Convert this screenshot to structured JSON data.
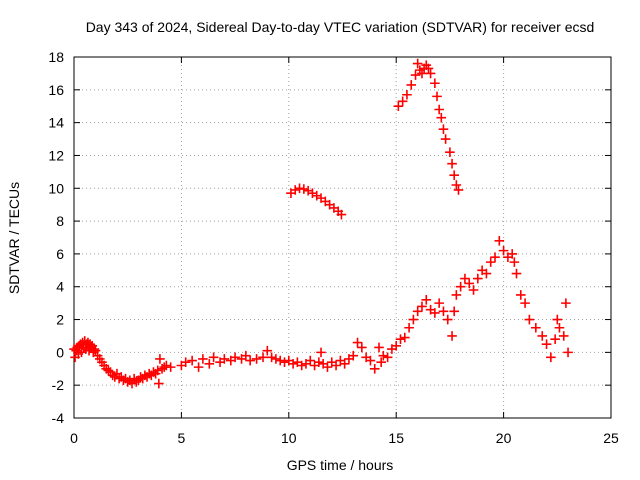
{
  "chart_data": {
    "type": "scatter",
    "title": "Day 343 of 2024, Sidereal Day-to-day VTEC variation (SDTVAR) for receiver ecsd",
    "xlabel": "GPS time / hours",
    "ylabel": "SDTVAR / TECUs",
    "xlim": [
      0,
      25
    ],
    "ylim": [
      -4,
      18
    ],
    "xticks": [
      "0",
      "5",
      "10",
      "15",
      "20",
      "25"
    ],
    "yticks": [
      "-4",
      "-2",
      "0",
      "2",
      "4",
      "6",
      "8",
      "10",
      "12",
      "14",
      "16",
      "18"
    ],
    "grid": true,
    "marker": "plus",
    "color": "#ff0000",
    "series": [
      {
        "name": "SDTVAR",
        "points": [
          [
            0.0,
            0.2
          ],
          [
            0.05,
            -0.3
          ],
          [
            0.1,
            0.1
          ],
          [
            0.15,
            0.3
          ],
          [
            0.2,
            -0.1
          ],
          [
            0.25,
            0.4
          ],
          [
            0.3,
            0.5
          ],
          [
            0.35,
            0.0
          ],
          [
            0.4,
            0.6
          ],
          [
            0.45,
            0.3
          ],
          [
            0.5,
            0.7
          ],
          [
            0.55,
            0.2
          ],
          [
            0.6,
            0.5
          ],
          [
            0.65,
            0.6
          ],
          [
            0.7,
            0.1
          ],
          [
            0.75,
            0.5
          ],
          [
            0.8,
            0.3
          ],
          [
            0.85,
            0.4
          ],
          [
            0.9,
            0.0
          ],
          [
            0.95,
            0.2
          ],
          [
            1.0,
            0.1
          ],
          [
            1.1,
            -0.2
          ],
          [
            1.2,
            -0.4
          ],
          [
            1.3,
            -0.6
          ],
          [
            1.4,
            -0.8
          ],
          [
            1.5,
            -1.0
          ],
          [
            1.6,
            -1.1
          ],
          [
            1.7,
            -1.2
          ],
          [
            1.8,
            -1.4
          ],
          [
            1.9,
            -1.5
          ],
          [
            2.0,
            -1.3
          ],
          [
            2.1,
            -1.6
          ],
          [
            2.2,
            -1.5
          ],
          [
            2.3,
            -1.7
          ],
          [
            2.4,
            -1.6
          ],
          [
            2.5,
            -1.8
          ],
          [
            2.6,
            -1.7
          ],
          [
            2.7,
            -1.9
          ],
          [
            2.8,
            -1.6
          ],
          [
            2.9,
            -1.8
          ],
          [
            3.0,
            -1.7
          ],
          [
            3.1,
            -1.5
          ],
          [
            3.2,
            -1.6
          ],
          [
            3.3,
            -1.4
          ],
          [
            3.4,
            -1.5
          ],
          [
            3.5,
            -1.3
          ],
          [
            3.6,
            -1.4
          ],
          [
            3.7,
            -1.2
          ],
          [
            3.8,
            -1.3
          ],
          [
            3.9,
            -1.1
          ],
          [
            3.95,
            -1.9
          ],
          [
            4.0,
            -0.4
          ],
          [
            4.1,
            -1.0
          ],
          [
            4.2,
            -0.9
          ],
          [
            4.3,
            -0.8
          ],
          [
            4.5,
            -0.9
          ],
          [
            5.0,
            -0.8
          ],
          [
            5.2,
            -0.6
          ],
          [
            5.5,
            -0.5
          ],
          [
            5.8,
            -0.9
          ],
          [
            6.0,
            -0.4
          ],
          [
            6.3,
            -0.7
          ],
          [
            6.5,
            -0.3
          ],
          [
            6.8,
            -0.6
          ],
          [
            7.0,
            -0.4
          ],
          [
            7.3,
            -0.5
          ],
          [
            7.5,
            -0.3
          ],
          [
            7.8,
            -0.4
          ],
          [
            8.0,
            -0.2
          ],
          [
            8.2,
            -0.5
          ],
          [
            8.5,
            -0.4
          ],
          [
            8.8,
            -0.3
          ],
          [
            9.0,
            0.1
          ],
          [
            9.2,
            -0.3
          ],
          [
            9.4,
            -0.4
          ],
          [
            9.6,
            -0.5
          ],
          [
            9.8,
            -0.6
          ],
          [
            10.0,
            -0.5
          ],
          [
            10.2,
            -0.7
          ],
          [
            10.4,
            -0.6
          ],
          [
            10.6,
            -0.8
          ],
          [
            10.8,
            -0.7
          ],
          [
            11.0,
            -0.5
          ],
          [
            11.2,
            -0.8
          ],
          [
            11.4,
            -0.6
          ],
          [
            11.5,
            0.0
          ],
          [
            11.6,
            -0.7
          ],
          [
            11.8,
            -0.9
          ],
          [
            12.0,
            -0.6
          ],
          [
            12.2,
            -0.8
          ],
          [
            12.4,
            -0.5
          ],
          [
            12.6,
            -0.7
          ],
          [
            12.8,
            -0.4
          ],
          [
            13.0,
            -0.2
          ],
          [
            13.2,
            0.6
          ],
          [
            13.4,
            0.3
          ],
          [
            13.6,
            -0.3
          ],
          [
            13.8,
            -0.5
          ],
          [
            14.0,
            -1.0
          ],
          [
            14.2,
            0.3
          ],
          [
            14.3,
            -0.6
          ],
          [
            14.4,
            -0.2
          ],
          [
            14.6,
            -0.3
          ],
          [
            14.8,
            0.2
          ],
          [
            15.0,
            0.4
          ],
          [
            15.2,
            0.8
          ],
          [
            15.4,
            0.9
          ],
          [
            15.6,
            1.5
          ],
          [
            15.8,
            2.0
          ],
          [
            16.0,
            2.5
          ],
          [
            16.2,
            2.8
          ],
          [
            16.4,
            3.2
          ],
          [
            16.6,
            2.6
          ],
          [
            16.8,
            2.4
          ],
          [
            17.0,
            3.0
          ],
          [
            17.2,
            2.5
          ],
          [
            17.4,
            2.0
          ],
          [
            17.6,
            1.0
          ],
          [
            17.7,
            2.5
          ],
          [
            17.8,
            3.5
          ],
          [
            18.0,
            4.0
          ],
          [
            18.2,
            4.5
          ],
          [
            18.4,
            4.2
          ],
          [
            18.6,
            3.8
          ],
          [
            18.8,
            4.5
          ],
          [
            19.0,
            5.0
          ],
          [
            19.2,
            4.8
          ],
          [
            19.4,
            5.5
          ],
          [
            19.6,
            5.8
          ],
          [
            19.8,
            6.8
          ],
          [
            20.0,
            6.2
          ],
          [
            20.2,
            5.8
          ],
          [
            20.4,
            6.0
          ],
          [
            20.5,
            5.5
          ],
          [
            20.6,
            4.8
          ],
          [
            20.8,
            3.5
          ],
          [
            21.0,
            3.0
          ],
          [
            21.2,
            2.0
          ],
          [
            21.5,
            1.5
          ],
          [
            21.8,
            1.0
          ],
          [
            22.0,
            0.5
          ],
          [
            22.2,
            -0.3
          ],
          [
            22.4,
            0.8
          ],
          [
            22.5,
            2.0
          ],
          [
            22.6,
            1.5
          ],
          [
            22.8,
            1.0
          ],
          [
            22.9,
            3.0
          ],
          [
            23.0,
            0.0
          ],
          [
            10.1,
            9.7
          ],
          [
            10.3,
            9.9
          ],
          [
            10.5,
            10.0
          ],
          [
            10.7,
            9.95
          ],
          [
            10.9,
            9.85
          ],
          [
            11.1,
            9.7
          ],
          [
            11.3,
            9.55
          ],
          [
            11.5,
            9.4
          ],
          [
            11.7,
            9.2
          ],
          [
            11.9,
            9.0
          ],
          [
            12.1,
            8.8
          ],
          [
            12.3,
            8.6
          ],
          [
            12.45,
            8.4
          ],
          [
            15.1,
            15.0
          ],
          [
            15.3,
            15.3
          ],
          [
            15.5,
            15.7
          ],
          [
            15.7,
            16.3
          ],
          [
            15.9,
            16.9
          ],
          [
            16.0,
            17.6
          ],
          [
            16.1,
            17.2
          ],
          [
            16.2,
            17.0
          ],
          [
            16.3,
            17.3
          ],
          [
            16.4,
            17.5
          ],
          [
            16.5,
            17.3
          ],
          [
            16.6,
            17.0
          ],
          [
            16.8,
            16.4
          ],
          [
            16.9,
            15.6
          ],
          [
            17.0,
            14.8
          ],
          [
            17.1,
            14.3
          ],
          [
            17.2,
            13.6
          ],
          [
            17.3,
            13.0
          ],
          [
            17.5,
            12.2
          ],
          [
            17.6,
            11.5
          ],
          [
            17.7,
            10.8
          ],
          [
            17.8,
            10.2
          ],
          [
            17.9,
            9.9
          ]
        ]
      }
    ]
  }
}
